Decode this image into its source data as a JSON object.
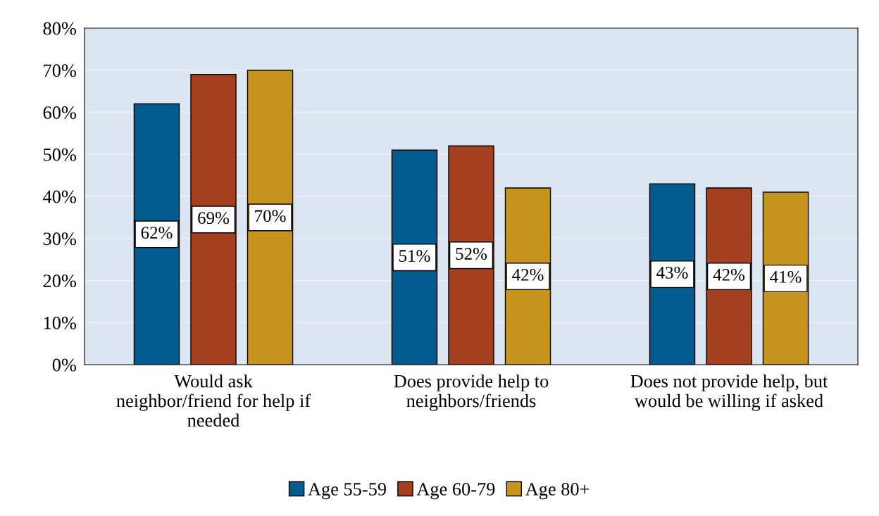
{
  "chart_data": {
    "type": "bar",
    "categories": [
      "Would ask\nneighbor/friend for help if\nneeded",
      "Does provide help to\nneighbors/friends",
      "Does not provide help, but\nwould be willing if asked"
    ],
    "series": [
      {
        "name": "Age 55-59",
        "color": "#005b8e",
        "values": [
          62,
          51,
          43
        ],
        "value_labels": [
          "62%",
          "51%",
          "43%"
        ]
      },
      {
        "name": "Age 60-79",
        "color": "#a4401f",
        "values": [
          69,
          52,
          42
        ],
        "value_labels": [
          "69%",
          "52%",
          "42%"
        ]
      },
      {
        "name": "Age 80+",
        "color": "#c6931c",
        "values": [
          70,
          42,
          41
        ],
        "value_labels": [
          "70%",
          "42%",
          "41%"
        ]
      }
    ],
    "ylim": [
      0,
      80
    ],
    "yticks": [
      {
        "value": 0,
        "label": "0%"
      },
      {
        "value": 10,
        "label": "10%"
      },
      {
        "value": 20,
        "label": "20%"
      },
      {
        "value": 30,
        "label": "30%"
      },
      {
        "value": 40,
        "label": "40%"
      },
      {
        "value": 50,
        "label": "50%"
      },
      {
        "value": 60,
        "label": "60%"
      },
      {
        "value": 70,
        "label": "70%"
      },
      {
        "value": 80,
        "label": "80%"
      }
    ],
    "grid": "y",
    "legend": "bottom"
  }
}
